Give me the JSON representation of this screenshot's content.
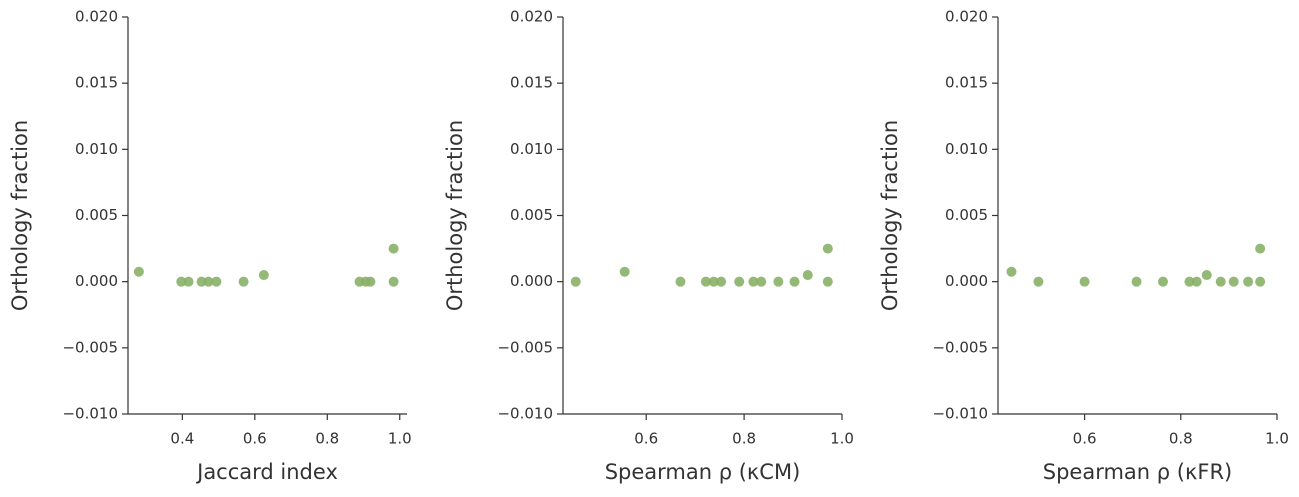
{
  "chart_data": [
    {
      "type": "scatter",
      "xlabel": "Jaccard index",
      "ylabel": "Orthology fraction",
      "color": "#88b066",
      "x": [
        0.28,
        0.397,
        0.417,
        0.453,
        0.472,
        0.494,
        0.569,
        0.625,
        0.889,
        0.906,
        0.919,
        0.983,
        0.983
      ],
      "values": [
        0.00075,
        0,
        0,
        0,
        0,
        0,
        0,
        0.0005,
        0,
        0,
        0,
        0,
        0.0025
      ],
      "xlim": [
        0.25,
        1.02
      ],
      "xticks": [
        0.4,
        0.6,
        0.8,
        {
          "value": 1,
          "label": "1.0"
        }
      ],
      "ylim": [
        -0.01,
        0.02
      ],
      "yticks": [
        {
          "value": -0.01,
          "label": "−0.010"
        },
        {
          "value": -0.005,
          "label": "−0.005"
        },
        {
          "value": 0,
          "label": "0.000"
        },
        {
          "value": 0.005,
          "label": "0.005"
        },
        {
          "value": 0.01,
          "label": "0.010"
        },
        {
          "value": 0.015,
          "label": "0.015"
        },
        {
          "value": 0.02,
          "label": "0.020"
        }
      ]
    },
    {
      "type": "scatter",
      "xlabel": "Spearman ρ (κCM)",
      "ylabel": "Orthology fraction",
      "color": "#88b066",
      "x": [
        0.456,
        0.556,
        0.67,
        0.722,
        0.738,
        0.753,
        0.79,
        0.819,
        0.835,
        0.87,
        0.903,
        0.93,
        0.971,
        0.971
      ],
      "values": [
        0,
        0.00075,
        0,
        0,
        0,
        0,
        0,
        0,
        0,
        0,
        0,
        0.0005,
        0,
        0.0025
      ],
      "xlim": [
        0.43,
        1.0
      ],
      "xticks": [
        0.6,
        0.8,
        {
          "value": 1,
          "label": "1.0"
        }
      ],
      "ylim": [
        -0.01,
        0.02
      ],
      "yticks": [
        {
          "value": -0.01,
          "label": "−0.010"
        },
        {
          "value": -0.005,
          "label": "−0.005"
        },
        {
          "value": 0,
          "label": "0.000"
        },
        {
          "value": 0.005,
          "label": "0.005"
        },
        {
          "value": 0.01,
          "label": "0.010"
        },
        {
          "value": 0.015,
          "label": "0.015"
        },
        {
          "value": 0.02,
          "label": "0.020"
        }
      ]
    },
    {
      "type": "scatter",
      "xlabel": "Spearman ρ (κFR)",
      "ylabel": "Orthology fraction",
      "color": "#88b066",
      "x": [
        0.448,
        0.504,
        0.6,
        0.708,
        0.763,
        0.818,
        0.833,
        0.854,
        0.883,
        0.91,
        0.94,
        0.965,
        0.965
      ],
      "values": [
        0.00075,
        0,
        0,
        0,
        0,
        0,
        0,
        0.0005,
        0,
        0,
        0,
        0,
        0.0025
      ],
      "xlim": [
        0.42,
        1.0
      ],
      "xticks": [
        0.6,
        0.8,
        {
          "value": 1,
          "label": "1.0"
        }
      ],
      "ylim": [
        -0.01,
        0.02
      ],
      "yticks": [
        {
          "value": -0.01,
          "label": "−0.010"
        },
        {
          "value": -0.005,
          "label": "−0.005"
        },
        {
          "value": 0,
          "label": "0.000"
        },
        {
          "value": 0.005,
          "label": "0.005"
        },
        {
          "value": 0.01,
          "label": "0.010"
        },
        {
          "value": 0.015,
          "label": "0.015"
        },
        {
          "value": 0.02,
          "label": "0.020"
        }
      ]
    }
  ]
}
